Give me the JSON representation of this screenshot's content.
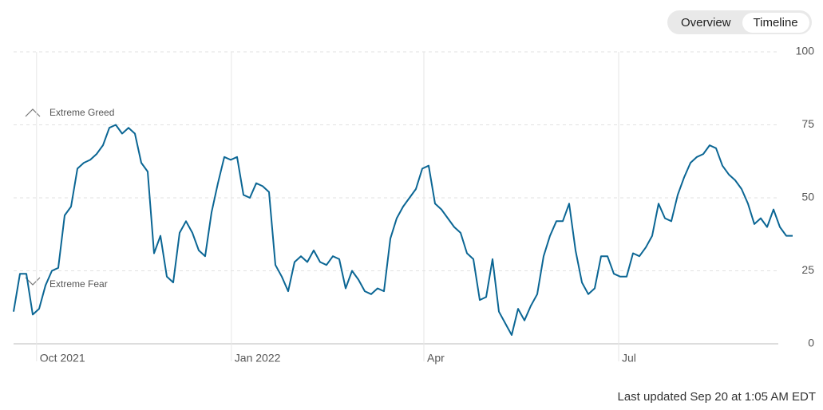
{
  "buttons": [
    "Overview",
    "Timeline"
  ],
  "footer": "Last updated Sep 20 at 1:05 AM EDT",
  "chart_data": {
    "type": "line",
    "annotations": [
      "Extreme Greed",
      "Extreme Fear"
    ],
    "series": [
      {
        "color": "#0b6694",
        "values": [
          11,
          24,
          24,
          10,
          12,
          20,
          25,
          26,
          44,
          47,
          60,
          62,
          63,
          65,
          68,
          74,
          75,
          72,
          74,
          72,
          62,
          59,
          31,
          37,
          23,
          21,
          38,
          42,
          38,
          32,
          30,
          45,
          55,
          64,
          63,
          64,
          51,
          50,
          55,
          54,
          52,
          27,
          23,
          18,
          28,
          30,
          28,
          32,
          28,
          27,
          30,
          29,
          19,
          25,
          22,
          18,
          17,
          19,
          18,
          36,
          43,
          47,
          50,
          53,
          60,
          61,
          48,
          46,
          43,
          40,
          38,
          31,
          29,
          15,
          16,
          29,
          11,
          7,
          3,
          12,
          8,
          13,
          17,
          30,
          37,
          42,
          42,
          48,
          32,
          21,
          17,
          19,
          30,
          30,
          24,
          23,
          23,
          31,
          30,
          33,
          37,
          48,
          43,
          42,
          51,
          57,
          62,
          64,
          65,
          68,
          67,
          61,
          58,
          56,
          53,
          48,
          41,
          43,
          40,
          46,
          40,
          37,
          37
        ]
      }
    ],
    "xlim": [
      0,
      122
    ],
    "xticks": [
      {
        "value": 3.6,
        "label": "Oct 2021"
      },
      {
        "value": 34.1,
        "label": "Jan 2022"
      },
      {
        "value": 64.25,
        "label": "Apr"
      },
      {
        "value": 94.75,
        "label": "Jul"
      }
    ],
    "ylim": [
      0,
      100
    ],
    "yticks": [
      0,
      25,
      50,
      75,
      100
    ],
    "grid": true
  }
}
